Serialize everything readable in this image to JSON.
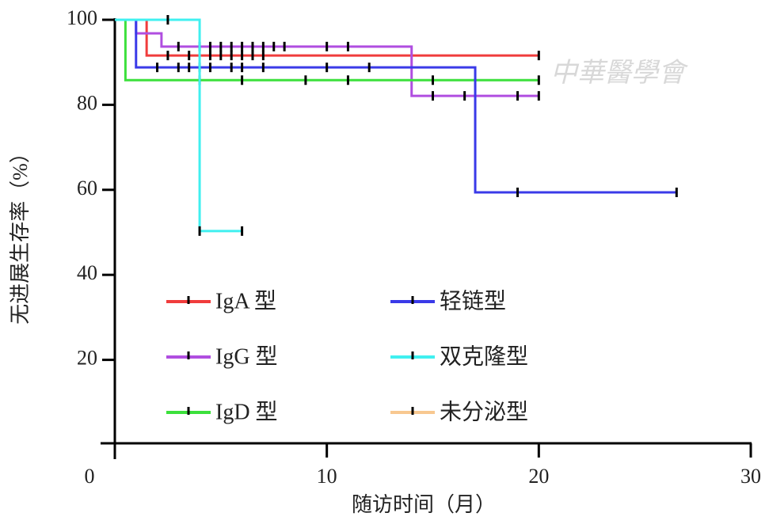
{
  "chart_data": {
    "type": "step",
    "xlabel": "随访时间（月）",
    "ylabel": "无进展生存率（%）",
    "watermark": "中華醫學會",
    "xlim": [
      0,
      30
    ],
    "ylim": [
      0,
      100
    ],
    "xticks": [
      0,
      10,
      20,
      30
    ],
    "yticks": [
      20,
      40,
      60,
      80,
      100
    ],
    "series": [
      {
        "name": "IgA 型",
        "color": "#f03c3c",
        "x": [
          0,
          1.5,
          20
        ],
        "values": [
          100,
          91.6,
          91.6
        ],
        "censored_x": [
          2.5,
          3.5,
          4.5,
          5,
          5.5,
          6,
          6.5,
          7,
          20
        ]
      },
      {
        "name": "IgG 型",
        "color": "#b04ee0",
        "x": [
          0,
          1,
          2.2,
          14,
          20
        ],
        "values": [
          100,
          96.8,
          93.7,
          82.1,
          82.1
        ],
        "censored_x": [
          3,
          4,
          4.5,
          5,
          5.5,
          6,
          6.5,
          7,
          7.5,
          8,
          10,
          11,
          15,
          16.5,
          19,
          20
        ]
      },
      {
        "name": "IgD 型",
        "color": "#3ce03c",
        "x": [
          0,
          0.5,
          20
        ],
        "values": [
          100,
          85.8,
          85.8
        ],
        "censored_x": [
          4,
          6,
          9,
          11,
          15,
          20
        ]
      },
      {
        "name": "轻链型",
        "color": "#3a3ae8",
        "x": [
          0,
          1,
          17,
          26.5
        ],
        "values": [
          100,
          88.8,
          59.4,
          59.4
        ],
        "censored_x": [
          2,
          3,
          3.5,
          4,
          4.5,
          5.5,
          6,
          7,
          10,
          12,
          19,
          26.5
        ]
      },
      {
        "name": "双克隆型",
        "color": "#40f0f0",
        "x": [
          0,
          4,
          6
        ],
        "values": [
          100,
          50.3,
          50.3
        ],
        "censored_x": [
          2.5,
          4,
          6
        ]
      },
      {
        "name": "未分泌型",
        "color": "#f8c890",
        "x": [],
        "values": [],
        "censored_x": []
      }
    ]
  }
}
